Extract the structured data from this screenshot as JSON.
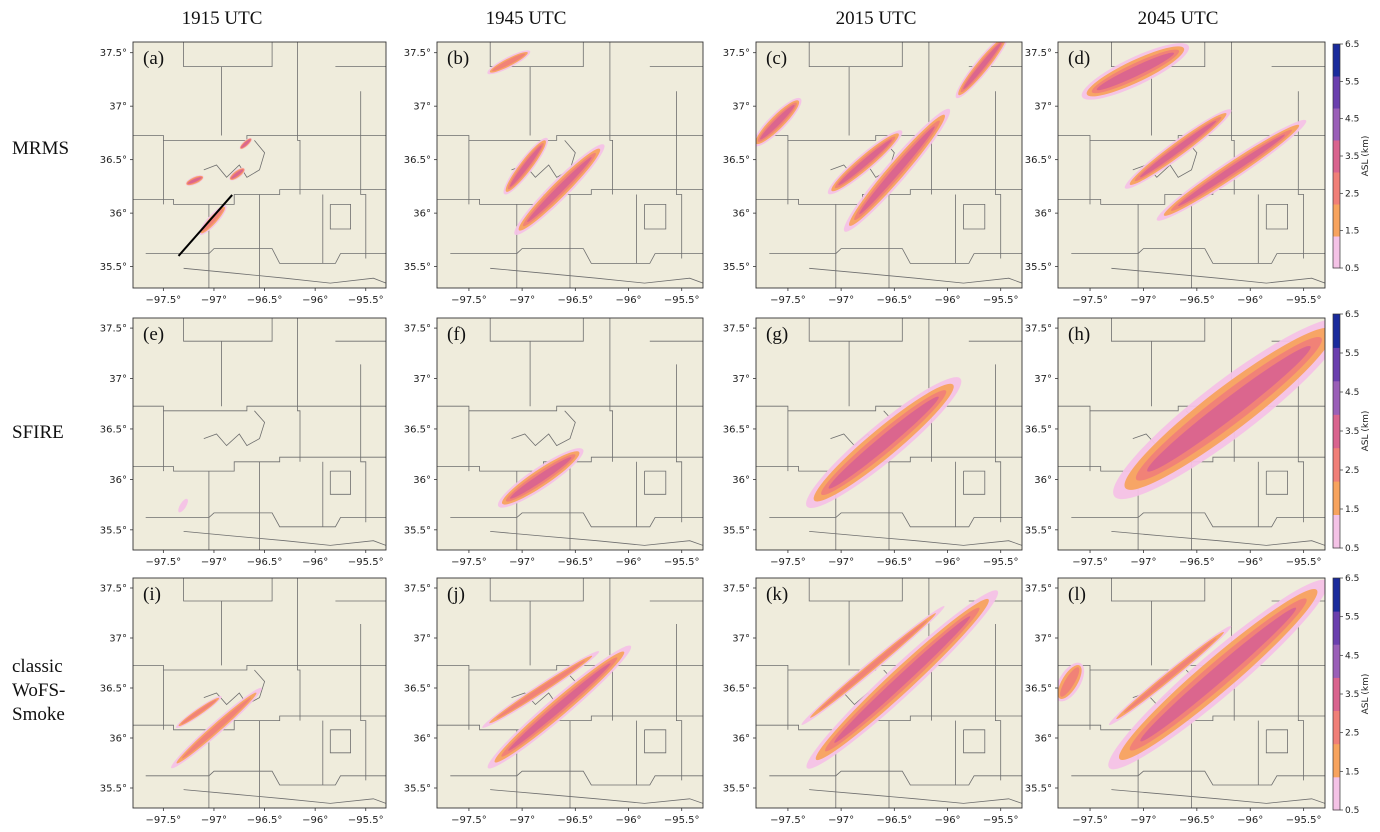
{
  "chart_data": {
    "type": "heatmap",
    "column_titles": [
      "1915 UTC",
      "1945 UTC",
      "2015 UTC",
      "2045 UTC"
    ],
    "row_labels": [
      [
        "MRMS"
      ],
      [
        "SFIRE"
      ],
      [
        "classic",
        "WoFS-",
        "Smoke"
      ]
    ],
    "panel_tags": [
      "(a)",
      "(b)",
      "(c)",
      "(d)",
      "(e)",
      "(f)",
      "(g)",
      "(h)",
      "(i)",
      "(j)",
      "(k)",
      "(l)"
    ],
    "x_range": [
      -97.8,
      -95.3
    ],
    "y_range": [
      35.3,
      37.6
    ],
    "x_ticks": [
      -97.5,
      -97,
      -96.5,
      -96,
      -95.5
    ],
    "x_tick_labels": [
      "−97.5°",
      "−97°",
      "−96.5°",
      "−96°",
      "−95.5°"
    ],
    "y_ticks": [
      35.5,
      36,
      36.5,
      37,
      37.5
    ],
    "y_tick_labels": [
      "35.5°",
      "36°",
      "36.5°",
      "37°",
      "37.5°"
    ],
    "colorbar": {
      "label": "ASL (km)",
      "ticks": [
        "0.5",
        "1.5",
        "2.5",
        "3.5",
        "4.5",
        "5.5",
        "6.5"
      ],
      "range": [
        0.5,
        6.5
      ],
      "colors": [
        "#f4c2e6",
        "#f7a35e",
        "#f07f78",
        "#d9648f",
        "#9a5fb8",
        "#6a3fae",
        "#1a2b9c"
      ]
    },
    "cross_section_line": {
      "start": [
        -97.35,
        35.6
      ],
      "end": [
        -96.82,
        36.17
      ]
    },
    "plumes": [
      {
        "panel": "a",
        "lon_start": -97.12,
        "lat_start": 35.82,
        "lon_end": -96.9,
        "lat_end": 36.05,
        "width_deg": 0.05,
        "max_level_km": 3.5
      },
      {
        "panel": "a",
        "lon_start": -97.25,
        "lat_start": 36.28,
        "lon_end": -97.13,
        "lat_end": 36.33,
        "width_deg": 0.04,
        "max_level_km": 4.5
      },
      {
        "panel": "a",
        "lon_start": -96.82,
        "lat_start": 36.33,
        "lon_end": -96.72,
        "lat_end": 36.4,
        "width_deg": 0.04,
        "max_level_km": 4.5
      },
      {
        "panel": "a",
        "lon_start": -96.72,
        "lat_start": 36.62,
        "lon_end": -96.65,
        "lat_end": 36.68,
        "width_deg": 0.03,
        "max_level_km": 4.5
      },
      {
        "panel": "b",
        "lon_start": -97.05,
        "lat_start": 35.82,
        "lon_end": -96.25,
        "lat_end": 36.62,
        "width_deg": 0.09,
        "max_level_km": 4.5
      },
      {
        "panel": "b",
        "lon_start": -97.15,
        "lat_start": 36.2,
        "lon_end": -96.78,
        "lat_end": 36.68,
        "width_deg": 0.07,
        "max_level_km": 4.5
      },
      {
        "panel": "b",
        "lon_start": -97.3,
        "lat_start": 37.32,
        "lon_end": -96.95,
        "lat_end": 37.5,
        "width_deg": 0.05,
        "max_level_km": 3.5
      },
      {
        "panel": "c",
        "lon_start": -96.95,
        "lat_start": 35.85,
        "lon_end": -96.0,
        "lat_end": 36.95,
        "width_deg": 0.1,
        "max_level_km": 4.5
      },
      {
        "panel": "c",
        "lon_start": -97.1,
        "lat_start": 36.2,
        "lon_end": -96.45,
        "lat_end": 36.75,
        "width_deg": 0.08,
        "max_level_km": 4.5
      },
      {
        "panel": "c",
        "lon_start": -95.9,
        "lat_start": 37.1,
        "lon_end": -95.45,
        "lat_end": 37.65,
        "width_deg": 0.07,
        "max_level_km": 4.5
      },
      {
        "panel": "c",
        "lon_start": -97.8,
        "lat_start": 36.65,
        "lon_end": -97.4,
        "lat_end": 37.05,
        "width_deg": 0.08,
        "max_level_km": 4.5
      },
      {
        "panel": "d",
        "lon_start": -96.85,
        "lat_start": 35.95,
        "lon_end": -95.5,
        "lat_end": 36.85,
        "width_deg": 0.09,
        "max_level_km": 4.5
      },
      {
        "panel": "d",
        "lon_start": -97.15,
        "lat_start": 36.25,
        "lon_end": -96.2,
        "lat_end": 36.95,
        "width_deg": 0.08,
        "max_level_km": 4.5
      },
      {
        "panel": "d",
        "lon_start": -97.55,
        "lat_start": 37.1,
        "lon_end": -96.6,
        "lat_end": 37.55,
        "width_deg": 0.13,
        "max_level_km": 4.5
      },
      {
        "panel": "e",
        "lon_start": -97.33,
        "lat_start": 35.7,
        "lon_end": -97.28,
        "lat_end": 35.78,
        "width_deg": 0.03,
        "max_level_km": 1.5
      },
      {
        "panel": "f",
        "lon_start": -97.2,
        "lat_start": 35.75,
        "lon_end": -96.45,
        "lat_end": 36.28,
        "width_deg": 0.1,
        "max_level_km": 4.5
      },
      {
        "panel": "g",
        "lon_start": -97.3,
        "lat_start": 35.75,
        "lon_end": -95.9,
        "lat_end": 36.98,
        "width_deg": 0.17,
        "max_level_km": 4.5
      },
      {
        "panel": "h",
        "lon_start": -97.25,
        "lat_start": 35.85,
        "lon_end": -95.15,
        "lat_end": 37.55,
        "width_deg": 0.26,
        "max_level_km": 4.5
      },
      {
        "panel": "i",
        "lon_start": -97.4,
        "lat_start": 35.72,
        "lon_end": -96.55,
        "lat_end": 36.48,
        "width_deg": 0.06,
        "max_level_km": 3.5
      },
      {
        "panel": "i",
        "lon_start": -97.35,
        "lat_start": 36.12,
        "lon_end": -96.95,
        "lat_end": 36.4,
        "width_deg": 0.04,
        "max_level_km": 3.5
      },
      {
        "panel": "j",
        "lon_start": -97.3,
        "lat_start": 35.72,
        "lon_end": -96.0,
        "lat_end": 36.9,
        "width_deg": 0.1,
        "max_level_km": 4.5
      },
      {
        "panel": "j",
        "lon_start": -97.35,
        "lat_start": 36.12,
        "lon_end": -96.3,
        "lat_end": 36.85,
        "width_deg": 0.05,
        "max_level_km": 3.5
      },
      {
        "panel": "k",
        "lon_start": -97.3,
        "lat_start": 35.72,
        "lon_end": -95.55,
        "lat_end": 37.45,
        "width_deg": 0.14,
        "max_level_km": 4.5
      },
      {
        "panel": "k",
        "lon_start": -97.35,
        "lat_start": 36.15,
        "lon_end": -96.05,
        "lat_end": 37.3,
        "width_deg": 0.05,
        "max_level_km": 3.5
      },
      {
        "panel": "l",
        "lon_start": -97.3,
        "lat_start": 35.72,
        "lon_end": -95.3,
        "lat_end": 37.55,
        "width_deg": 0.2,
        "max_level_km": 4.5
      },
      {
        "panel": "l",
        "lon_start": -97.3,
        "lat_start": 36.15,
        "lon_end": -96.2,
        "lat_end": 37.1,
        "width_deg": 0.05,
        "max_level_km": 3.5
      },
      {
        "panel": "l",
        "lon_start": -97.78,
        "lat_start": 36.4,
        "lon_end": -97.6,
        "lat_end": 36.72,
        "width_deg": 0.1,
        "max_level_km": 3.5
      }
    ]
  }
}
